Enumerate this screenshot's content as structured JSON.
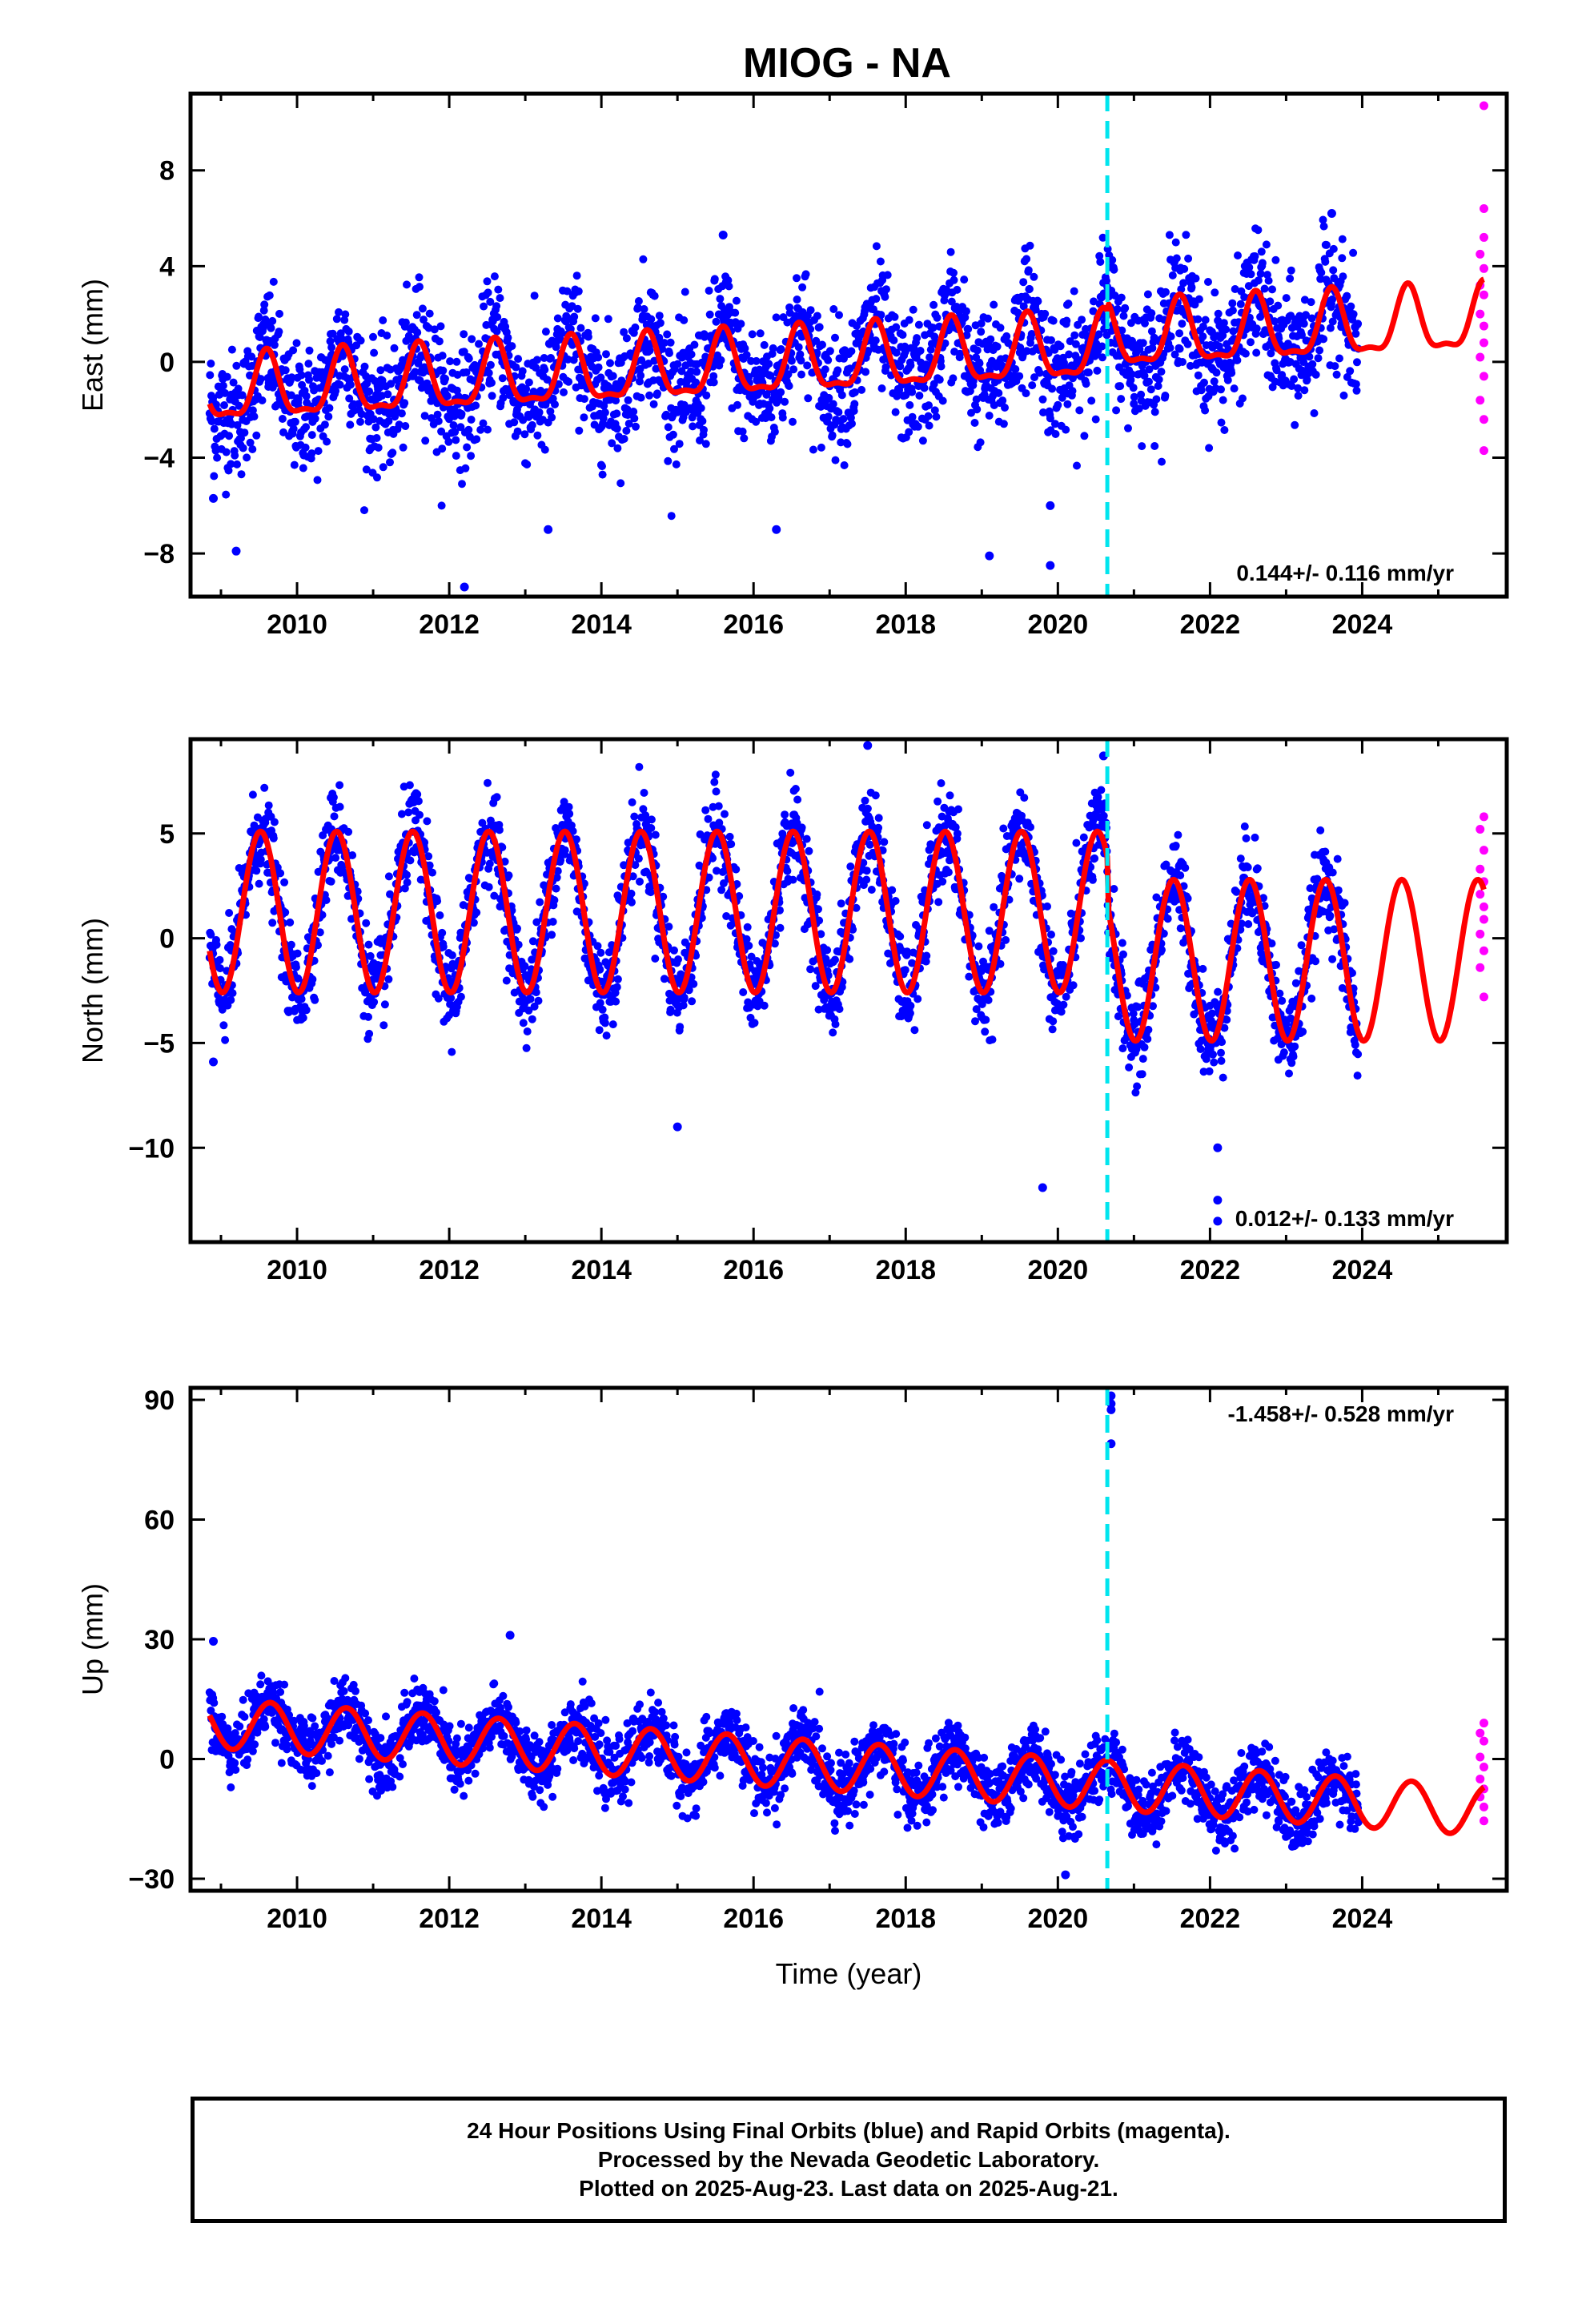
{
  "title": "MIOG - NA",
  "colors": {
    "final_orbits": "#0000ff",
    "rapid_orbits": "#ff00ff",
    "model_fit": "#ff0000",
    "event_line": "#00e5ee"
  },
  "footer": {
    "line1": "24 Hour Positions Using Final Orbits (blue) and Rapid Orbits (magenta).",
    "line2": "Processed by the Nevada Geodetic Laboratory.",
    "line3": "Plotted on 2025-Aug-23. Last data on 2025-Aug-21."
  },
  "chart_data": [
    {
      "type": "scatter",
      "title": "MIOG - NA",
      "ylabel": "East (mm)",
      "xlabel": "",
      "xlim": [
        2008.6,
        2025.9
      ],
      "ylim": [
        -9.8,
        11.2
      ],
      "xticks": [
        "2010",
        "2012",
        "2014",
        "2016",
        "2018",
        "2020",
        "2022",
        "2024"
      ],
      "yticks": [
        "8",
        "4",
        "0",
        "−4",
        "−8"
      ],
      "ytick_values": [
        8,
        4,
        0,
        -4,
        -8
      ],
      "rate_label": "0.144+/- 0.116 mm/yr",
      "rate_position": "bottom-right",
      "event_line_x": 2020.65,
      "series": [
        {
          "role": "final_orbits",
          "x_range": [
            2008.85,
            2023.95
          ],
          "trend_mm": {
            "start": -1.2,
            "end": 0.8
          },
          "seasonal_amplitude_mm": 1.5,
          "scatter_sd_mm": 1.3,
          "outliers": [
            [
              2009.2,
              -7.9
            ],
            [
              2008.9,
              -5.7
            ],
            [
              2012.2,
              -9.4
            ],
            [
              2013.3,
              -7.0
            ],
            [
              2016.3,
              -7.0
            ],
            [
              2019.1,
              -8.1
            ],
            [
              2019.9,
              -8.5
            ],
            [
              2019.9,
              -6.0
            ],
            [
              2023.6,
              6.2
            ],
            [
              2015.6,
              5.3
            ]
          ]
        },
        {
          "role": "rapid_orbits",
          "x_range": [
            2025.45,
            2025.65
          ],
          "points": [
            [
              2025.6,
              10.7
            ],
            [
              2025.6,
              6.4
            ],
            [
              2025.6,
              5.2
            ],
            [
              2025.55,
              4.5
            ],
            [
              2025.6,
              3.9
            ],
            [
              2025.55,
              3.2
            ],
            [
              2025.6,
              2.8
            ],
            [
              2025.55,
              2.0
            ],
            [
              2025.6,
              1.5
            ],
            [
              2025.6,
              0.8
            ],
            [
              2025.55,
              0.2
            ],
            [
              2025.6,
              -0.6
            ],
            [
              2025.55,
              -1.6
            ],
            [
              2025.6,
              -2.4
            ],
            [
              2025.6,
              -3.7
            ]
          ]
        },
        {
          "role": "model_fit",
          "x_range": [
            2008.85,
            2025.6
          ],
          "trend_mm": {
            "start": -1.3,
            "end": 1.3
          },
          "annual_amplitude_mm": 1.3,
          "annual_peak_phase": 0.6,
          "semiannual_amplitude_mm": 0.45,
          "offset_at_event_mm": 0.4
        }
      ]
    },
    {
      "type": "scatter",
      "ylabel": "North (mm)",
      "xlabel": "",
      "xlim": [
        2008.6,
        2025.9
      ],
      "ylim": [
        -14.5,
        9.5
      ],
      "xticks": [
        "2010",
        "2012",
        "2014",
        "2016",
        "2018",
        "2020",
        "2022",
        "2024"
      ],
      "yticks": [
        "5",
        "0",
        "−5",
        "−10"
      ],
      "ytick_values": [
        5,
        0,
        -5,
        -10
      ],
      "rate_label": "0.012+/- 0.133 mm/yr",
      "rate_position": "bottom-right",
      "event_line_x": 2020.65,
      "series": [
        {
          "role": "final_orbits",
          "x_range": [
            2008.85,
            2023.95
          ],
          "trend_mm": {
            "start": 0.0,
            "end": 0.0
          },
          "seasonal_amplitude_mm": 3.8,
          "scatter_sd_mm": 1.1,
          "outliers": [
            [
              2015.0,
              -9.0
            ],
            [
              2019.8,
              -11.9
            ],
            [
              2022.1,
              -13.5
            ],
            [
              2022.1,
              -12.5
            ],
            [
              2022.1,
              -10.0
            ],
            [
              2017.5,
              9.2
            ],
            [
              2020.6,
              8.7
            ],
            [
              2008.9,
              -5.9
            ]
          ]
        },
        {
          "role": "rapid_orbits",
          "x_range": [
            2025.45,
            2025.65
          ],
          "points": [
            [
              2025.6,
              5.8
            ],
            [
              2025.55,
              5.2
            ],
            [
              2025.6,
              4.2
            ],
            [
              2025.55,
              3.3
            ],
            [
              2025.6,
              2.7
            ],
            [
              2025.55,
              2.1
            ],
            [
              2025.6,
              1.5
            ],
            [
              2025.6,
              0.9
            ],
            [
              2025.55,
              0.2
            ],
            [
              2025.6,
              -0.6
            ],
            [
              2025.55,
              -1.4
            ],
            [
              2025.6,
              -2.8
            ]
          ]
        },
        {
          "role": "model_fit",
          "x_range": [
            2008.85,
            2025.6
          ],
          "trend_mm": {
            "start": 1.25,
            "end": 1.25
          },
          "annual_amplitude_mm": 3.85,
          "annual_peak_phase": 0.52,
          "semiannual_amplitude_mm": 0.0,
          "offset_at_event_mm": -2.3
        }
      ]
    },
    {
      "type": "scatter",
      "ylabel": "Up (mm)",
      "xlabel": "Time (year)",
      "xlim": [
        2008.6,
        2025.9
      ],
      "ylim": [
        -33,
        93
      ],
      "xticks": [
        "2010",
        "2012",
        "2014",
        "2016",
        "2018",
        "2020",
        "2022",
        "2024"
      ],
      "yticks": [
        "90",
        "60",
        "30",
        "0",
        "−30"
      ],
      "ytick_values": [
        90,
        60,
        30,
        0,
        -30
      ],
      "rate_label": "-1.458+/- 0.528 mm/yr",
      "rate_position": "top-right",
      "event_line_x": 2020.65,
      "series": [
        {
          "role": "final_orbits",
          "x_range": [
            2008.85,
            2023.95
          ],
          "trend_mm": {
            "start": 10.0,
            "end": -10.0
          },
          "seasonal_amplitude_mm": 5.5,
          "scatter_sd_mm": 4.0,
          "outliers": [
            [
              2020.7,
              91.0
            ],
            [
              2020.7,
              89.0
            ],
            [
              2020.7,
              87.5
            ],
            [
              2020.7,
              79.0
            ],
            [
              2012.8,
              31.0
            ],
            [
              2008.9,
              29.5
            ],
            [
              2020.1,
              -29.0
            ]
          ]
        },
        {
          "role": "rapid_orbits",
          "x_range": [
            2025.45,
            2025.65
          ],
          "points": [
            [
              2025.6,
              9.0
            ],
            [
              2025.55,
              6.5
            ],
            [
              2025.6,
              4.5
            ],
            [
              2025.55,
              0.5
            ],
            [
              2025.6,
              -2.0
            ],
            [
              2025.55,
              -5.0
            ],
            [
              2025.6,
              -7.5
            ],
            [
              2025.55,
              -9.5
            ],
            [
              2025.6,
              -12.0
            ],
            [
              2025.6,
              -15.5
            ]
          ]
        },
        {
          "role": "model_fit",
          "x_range": [
            2008.85,
            2025.6
          ],
          "trend_mm": {
            "start": 9.0,
            "end": -13.0
          },
          "annual_amplitude_mm": 6.2,
          "annual_peak_phase": 0.65,
          "semiannual_amplitude_mm": 0.0,
          "offset_at_event_mm": 0.0
        }
      ]
    }
  ]
}
